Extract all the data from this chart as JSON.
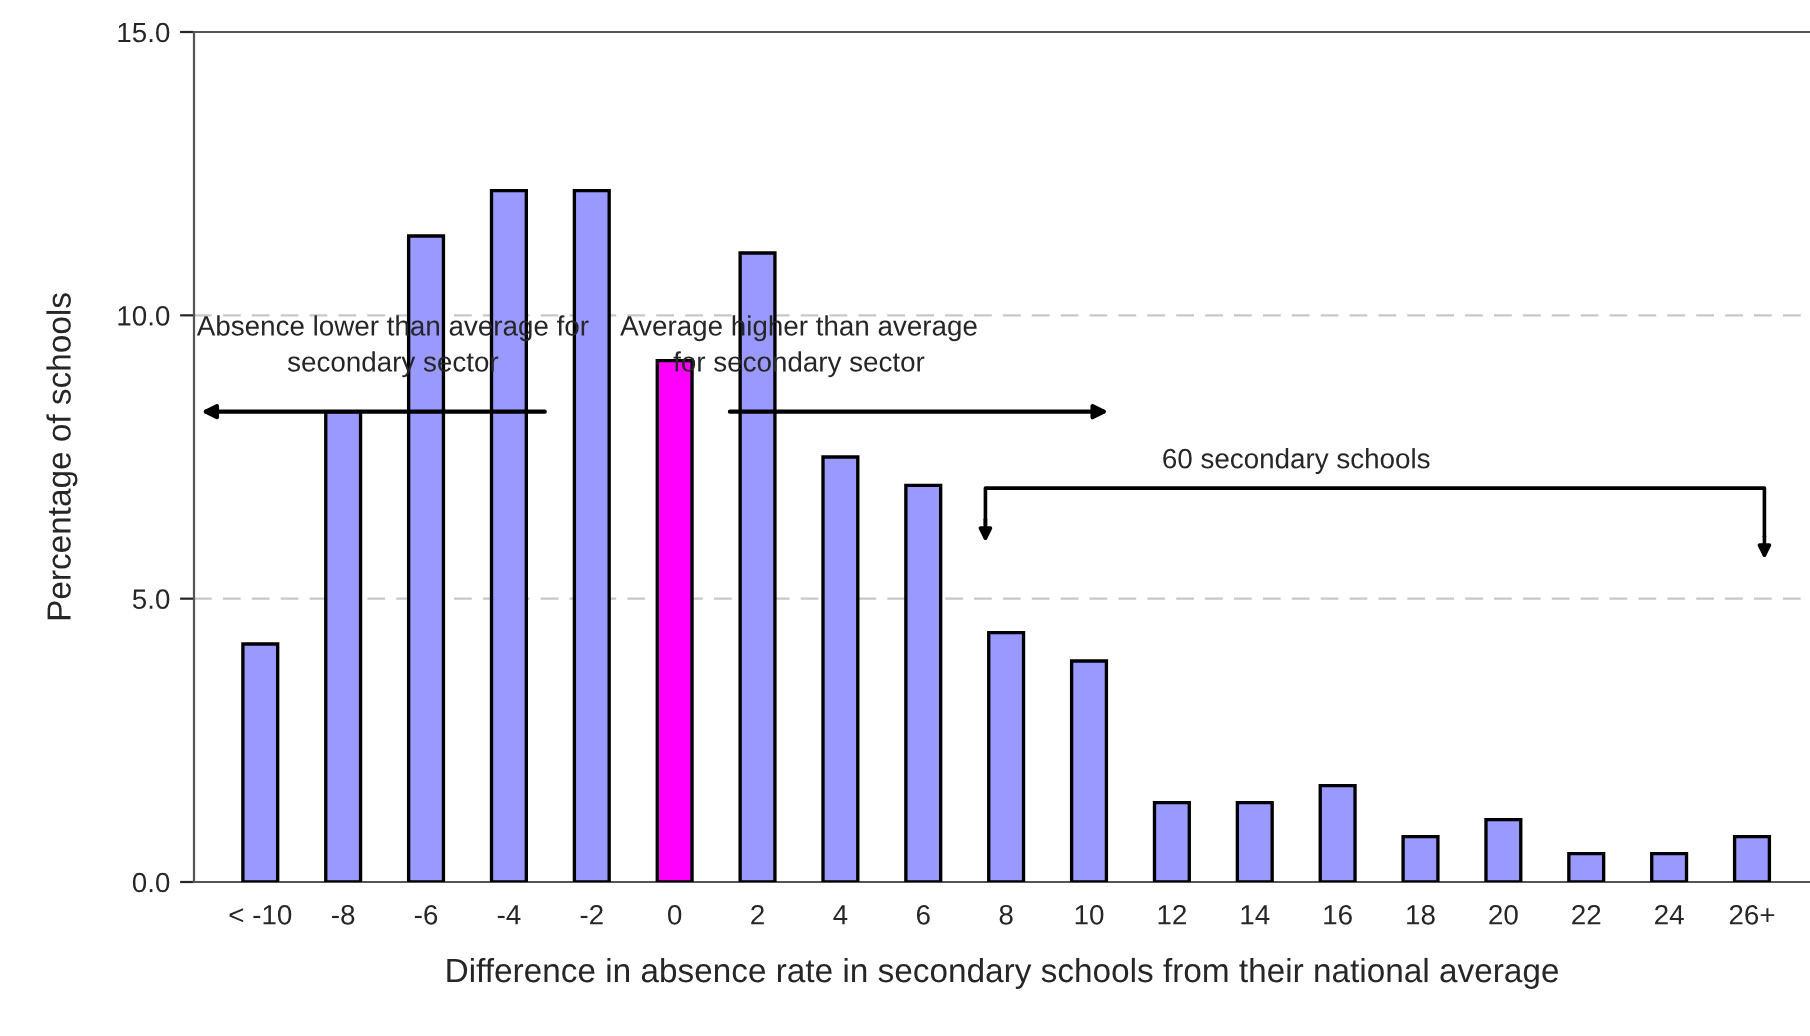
{
  "chart_data": {
    "type": "bar",
    "xlabel": "Difference in absence rate in secondary schools from their national average",
    "ylabel": "Percentage of schools",
    "categories": [
      "< -10",
      "-8",
      "-6",
      "-4",
      "-2",
      "0",
      "2",
      "4",
      "6",
      "8",
      "10",
      "12",
      "14",
      "16",
      "18",
      "20",
      "22",
      "24",
      "26+"
    ],
    "values": [
      4.2,
      8.3,
      11.4,
      12.2,
      12.2,
      9.2,
      11.1,
      7.5,
      7.0,
      4.4,
      3.9,
      1.4,
      1.4,
      1.7,
      0.8,
      1.1,
      0.5,
      0.5,
      0.8
    ],
    "colors": [
      "#9999ff",
      "#9999ff",
      "#9999ff",
      "#9999ff",
      "#9999ff",
      "#ff00ff",
      "#9999ff",
      "#9999ff",
      "#9999ff",
      "#9999ff",
      "#9999ff",
      "#9999ff",
      "#9999ff",
      "#9999ff",
      "#9999ff",
      "#9999ff",
      "#9999ff",
      "#9999ff",
      "#9999ff"
    ],
    "ylim": [
      0,
      15
    ],
    "yticks": [
      {
        "value": 0,
        "label": "0.0"
      },
      {
        "value": 5,
        "label": "5.0"
      },
      {
        "value": 10,
        "label": "10.0"
      },
      {
        "value": 15,
        "label": "15.0"
      }
    ],
    "grid": "y",
    "annotations": [
      "Absence lower than average for\nsecondary sector",
      "Average higher than average\nfor secondary sector",
      "60 secondary schools"
    ]
  }
}
